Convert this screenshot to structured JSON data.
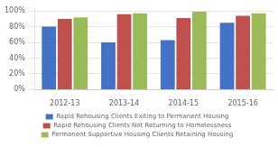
{
  "chart_data": {
    "type": "bar",
    "categories": [
      "2012-13",
      "2013-14",
      "2014-15",
      "2015-16"
    ],
    "series": [
      {
        "name": "Rapid Rehousing Clients Exiting to Permanent Housing",
        "color": "#4472C4",
        "values": [
          80,
          60,
          63,
          85
        ]
      },
      {
        "name": "Rapid Rehousing Clients Not Returning to Homelessness",
        "color": "#C0504D",
        "values": [
          90,
          96,
          91,
          94
        ]
      },
      {
        "name": "Permanent Supportive Housing Clients Retaining Housing",
        "color": "#9BBB59",
        "values": [
          92,
          97,
          99,
          97
        ]
      }
    ],
    "ylim": [
      0,
      105
    ],
    "yticks": [
      {
        "value": 0,
        "label": "0%"
      },
      {
        "value": 20,
        "label": "20%"
      },
      {
        "value": 40,
        "label": "40%"
      },
      {
        "value": 60,
        "label": "60%"
      },
      {
        "value": 80,
        "label": "80%"
      },
      {
        "value": 100,
        "label": "100%"
      }
    ],
    "grid": true,
    "legend": "bottom"
  }
}
